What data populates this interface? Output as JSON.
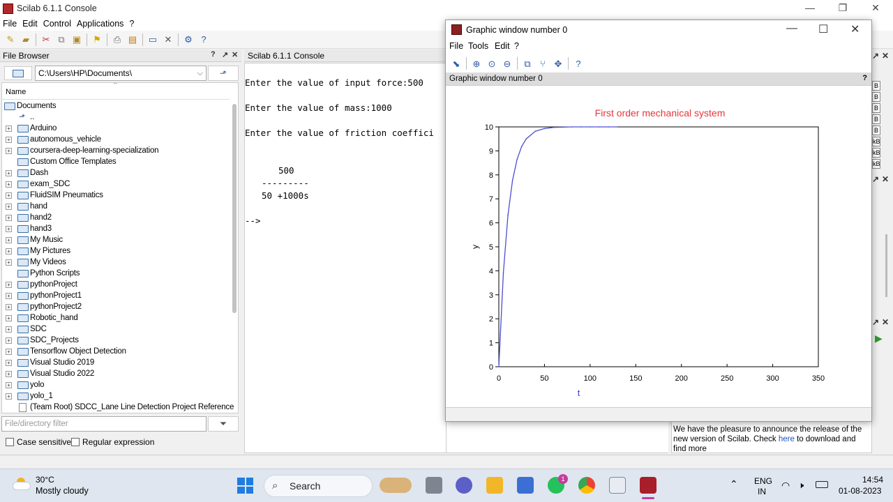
{
  "main_window": {
    "title": "Scilab 6.1.1 Console",
    "menu": [
      "File",
      "Edit",
      "Control",
      "Applications",
      "?"
    ]
  },
  "file_browser": {
    "title": "File Browser",
    "path": "C:\\Users\\HP\\Documents\\",
    "column_header": "Name",
    "root": "Documents",
    "parent": "..",
    "items": [
      {
        "name": "Arduino",
        "expandable": true
      },
      {
        "name": "autonomous_vehicle",
        "expandable": true
      },
      {
        "name": "coursera-deep-learning-specialization",
        "expandable": true
      },
      {
        "name": "Custom Office Templates",
        "expandable": false
      },
      {
        "name": "Dash",
        "expandable": true
      },
      {
        "name": "exam_SDC",
        "expandable": true
      },
      {
        "name": "FluidSIM Pneumatics",
        "expandable": true
      },
      {
        "name": "hand",
        "expandable": true
      },
      {
        "name": "hand2",
        "expandable": true
      },
      {
        "name": "hand3",
        "expandable": true
      },
      {
        "name": "My Music",
        "expandable": true
      },
      {
        "name": "My Pictures",
        "expandable": true
      },
      {
        "name": "My Videos",
        "expandable": true
      },
      {
        "name": "Python Scripts",
        "expandable": false
      },
      {
        "name": "pythonProject",
        "expandable": true
      },
      {
        "name": "pythonProject1",
        "expandable": true
      },
      {
        "name": "pythonProject2",
        "expandable": true
      },
      {
        "name": "Robotic_hand",
        "expandable": true
      },
      {
        "name": "SDC",
        "expandable": true
      },
      {
        "name": "SDC_Projects",
        "expandable": true
      },
      {
        "name": "Tensorflow Object Detection",
        "expandable": true
      },
      {
        "name": "Visual Studio 2019",
        "expandable": true
      },
      {
        "name": "Visual Studio 2022",
        "expandable": true
      },
      {
        "name": "yolo",
        "expandable": true
      },
      {
        "name": "yolo_1",
        "expandable": true
      }
    ],
    "file_item": "(Team Root) SDCC_Lane Line Detection Project Reference",
    "filter_placeholder": "File/directory filter",
    "case_sensitive": "Case sensitive",
    "regular_expression": "Regular expression"
  },
  "console": {
    "title": "Scilab 6.1.1 Console",
    "lines": [
      "Enter the value of input force:500",
      "Enter the value of mass:1000",
      "Enter the value of friction coeffici",
      "500",
      "---------",
      "50 +1000s",
      "-->"
    ]
  },
  "news": {
    "text_before": "We have the pleasure to announce the release of the new version of Scilab. Check ",
    "link": "here",
    "text_after": " to download and find more"
  },
  "variable_cells": [
    "B",
    "B",
    "B",
    "B",
    "B",
    "kB",
    "kB",
    "kB"
  ],
  "graphic_window": {
    "title": "Graphic window number 0",
    "menu": [
      "File",
      "Tools",
      "Edit",
      "?"
    ],
    "subheader": "Graphic window number 0"
  },
  "chart_data": {
    "type": "line",
    "title": "First order mechanical system",
    "xlabel": "t",
    "ylabel": "y",
    "xlim": [
      0,
      350
    ],
    "ylim": [
      0,
      10
    ],
    "xticks": [
      0,
      50,
      100,
      150,
      200,
      250,
      300,
      350
    ],
    "yticks": [
      0,
      1,
      2,
      3,
      4,
      5,
      6,
      7,
      8,
      9,
      10
    ],
    "series": [
      {
        "x": [
          0,
          5,
          10,
          15,
          20,
          25,
          30,
          40,
          50,
          60,
          70,
          80,
          90,
          100,
          110,
          120,
          130
        ],
        "y": [
          0,
          3.93,
          6.32,
          7.77,
          8.65,
          9.18,
          9.5,
          9.82,
          9.93,
          9.98,
          9.99,
          10,
          10,
          10,
          10,
          10,
          10
        ]
      }
    ],
    "colors": {
      "line": "#4a4fd0",
      "title": "#e8353a",
      "xlabel": "#3a3ad6"
    },
    "grid": false
  },
  "taskbar": {
    "weather_temp": "30°C",
    "weather_desc": "Mostly cloudy",
    "search": "Search",
    "whatsapp_badge": "1",
    "lang": "ENG",
    "region": "IN",
    "time": "14:54",
    "date": "01-08-2023"
  }
}
